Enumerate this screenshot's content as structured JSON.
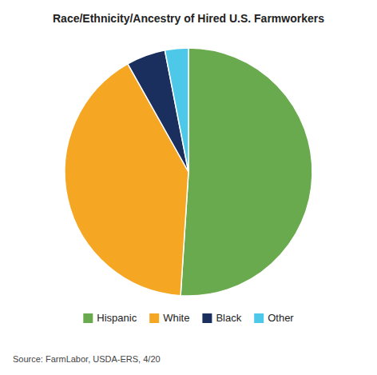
{
  "chart_data": {
    "type": "pie",
    "title": "Race/Ethnicity/Ancestry of Hired U.S. Farmworkers",
    "categories": [
      "Hispanic",
      "White",
      "Black",
      "Other"
    ],
    "values": [
      50,
      40,
      5,
      3
    ],
    "colors": [
      "#6aaa4e",
      "#f5a623",
      "#1b2f5e",
      "#4ec8e8"
    ],
    "legend": "bottom",
    "annotations": [
      "Source: FarmLabor, USDA-ERS, 4/20"
    ]
  }
}
